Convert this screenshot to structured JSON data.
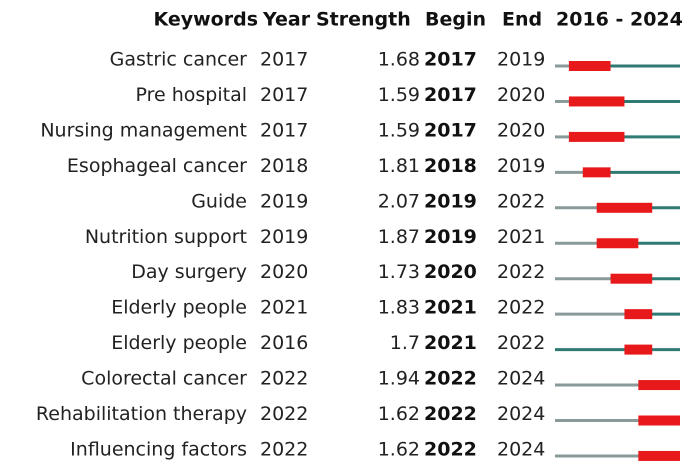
{
  "header": {
    "keyword": "Keywords",
    "year": "Year",
    "strength": "Strength",
    "begin": "Begin",
    "end": "End",
    "timeline": "2016 - 2024"
  },
  "timeline_range": [
    2016,
    2024
  ],
  "colors": {
    "before": "#8a9a9a",
    "after": "#2f7a72",
    "burst": "#e8191b"
  },
  "rows": [
    {
      "keyword": "Gastric cancer",
      "year": 2017,
      "strength": 1.68,
      "begin": 2017,
      "end": 2019
    },
    {
      "keyword": "Pre hospital",
      "year": 2017,
      "strength": 1.59,
      "begin": 2017,
      "end": 2020
    },
    {
      "keyword": "Nursing management",
      "year": 2017,
      "strength": 1.59,
      "begin": 2017,
      "end": 2020
    },
    {
      "keyword": "Esophageal cancer",
      "year": 2018,
      "strength": 1.81,
      "begin": 2018,
      "end": 2019
    },
    {
      "keyword": "Guide",
      "year": 2019,
      "strength": 2.07,
      "begin": 2019,
      "end": 2022
    },
    {
      "keyword": "Nutrition support",
      "year": 2019,
      "strength": 1.87,
      "begin": 2019,
      "end": 2021
    },
    {
      "keyword": "Day surgery",
      "year": 2020,
      "strength": 1.73,
      "begin": 2020,
      "end": 2022
    },
    {
      "keyword": "Elderly people",
      "year": 2021,
      "strength": 1.83,
      "begin": 2021,
      "end": 2022
    },
    {
      "keyword": "Elderly people",
      "year": 2016,
      "strength": 1.7,
      "begin": 2021,
      "end": 2022
    },
    {
      "keyword": "Colorectal cancer",
      "year": 2022,
      "strength": 1.94,
      "begin": 2022,
      "end": 2024
    },
    {
      "keyword": "Rehabilitation therapy",
      "year": 2022,
      "strength": 1.62,
      "begin": 2022,
      "end": 2024
    },
    {
      "keyword": "Influencing factors",
      "year": 2022,
      "strength": 1.62,
      "begin": 2022,
      "end": 2024
    }
  ]
}
